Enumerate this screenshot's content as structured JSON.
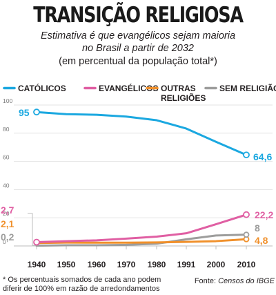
{
  "title": "TRANSIÇÃO RELIGIOSA",
  "subtitle_line1": "Estimativa é que evangélicos sejam maioria",
  "subtitle_line2": "no Brasil a partir de 2032",
  "unit_note": "(em percentual da população total*)",
  "footnote": "* Os percentuais somados de cada ano podem diferir de 100% em razão de arredondamentos",
  "source_prefix": "Fonte: ",
  "source_name": "Censos do IBGE",
  "chart_data": {
    "type": "line",
    "categories": [
      "1940",
      "1950",
      "1960",
      "1970",
      "1980",
      "1991",
      "2000",
      "2010"
    ],
    "yticks": [
      0,
      20,
      40,
      60,
      80,
      100
    ],
    "ylim": [
      0,
      100
    ],
    "grid": true,
    "legend_position": "top",
    "series": [
      {
        "name": "CATÓLICOS",
        "color": "#1ba8e0",
        "values": [
          95,
          93.5,
          93.1,
          91.8,
          89.2,
          83.3,
          73.9,
          64.6
        ],
        "start_label": "95",
        "end_label": "64,6"
      },
      {
        "name": "EVANGÉLICOS",
        "color": "#e05fa3",
        "values": [
          2.7,
          3.4,
          4.0,
          5.2,
          6.6,
          9.0,
          15.4,
          22.2
        ],
        "start_label": "2,7",
        "end_label": "22,2"
      },
      {
        "name": "OUTRAS RELIGIÕES",
        "name_lines": [
          "OUTRAS",
          "RELIGIÕES"
        ],
        "color": "#f0902b",
        "values": [
          2.1,
          2.4,
          2.3,
          2.3,
          2.5,
          2.9,
          3.4,
          4.8
        ],
        "start_label": "2,1",
        "end_label": "4,8"
      },
      {
        "name": "SEM RELIGIÃO",
        "color": "#9d9d9c",
        "values": [
          0.2,
          0.5,
          0.5,
          0.8,
          1.6,
          4.7,
          7.4,
          8.0
        ],
        "start_label": "0,2",
        "end_label": "8"
      }
    ]
  }
}
